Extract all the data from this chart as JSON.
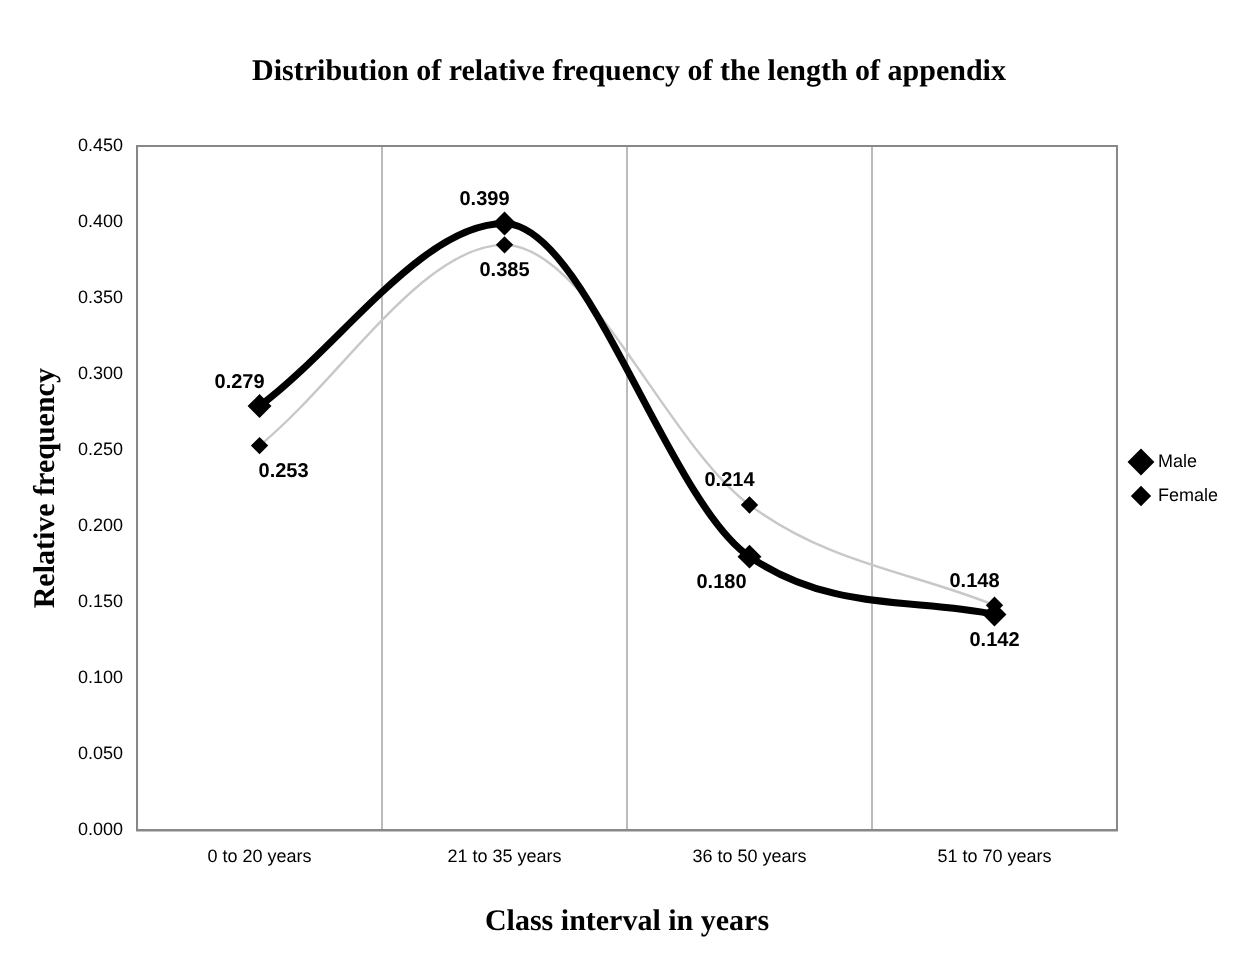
{
  "chart_data": {
    "type": "line",
    "title": "Distribution of relative frequency of the length of appendix",
    "xlabel": "Class interval in years",
    "ylabel": "Relative frequency",
    "categories": [
      "0 to 20 years",
      "21 to 35 years",
      "36 to 50 years",
      "51 to 70 years"
    ],
    "series": [
      {
        "name": "Male",
        "color": "#000000",
        "values": [
          0.279,
          0.399,
          0.18,
          0.142
        ],
        "value_labels": [
          "0.279",
          "0.399",
          "0.180",
          "0.142"
        ]
      },
      {
        "name": "Female",
        "color": "#c8c8c8",
        "values": [
          0.253,
          0.385,
          0.214,
          0.148
        ],
        "value_labels": [
          "0.253",
          "0.385",
          "0.214",
          "0.148"
        ]
      }
    ],
    "ylim": [
      0,
      0.45
    ],
    "yticks": [
      {
        "value": 0,
        "label": "0.000"
      },
      {
        "value": 0.05,
        "label": "0.050"
      },
      {
        "value": 0.1,
        "label": "0.100"
      },
      {
        "value": 0.15,
        "label": "0.150"
      },
      {
        "value": 0.2,
        "label": "0.200"
      },
      {
        "value": 0.25,
        "label": "0.250"
      },
      {
        "value": 0.3,
        "label": "0.300"
      },
      {
        "value": 0.35,
        "label": "0.350"
      },
      {
        "value": 0.4,
        "label": "0.400"
      },
      {
        "value": 0.45,
        "label": "0.450"
      }
    ],
    "grid": "x",
    "legend": "right",
    "marker": "diamond",
    "line_style": "solid"
  }
}
